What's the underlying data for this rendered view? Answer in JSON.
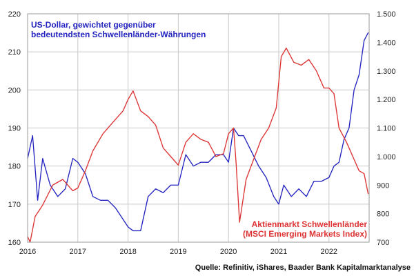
{
  "chart_data": {
    "type": "line",
    "title_left_line1": "US-Dollar, gewichtet gegenüber",
    "title_left_line2": "bedeutendsten Schwellenländer-Währungen",
    "title_right_line1": "Aktienmarkt Schwellenländer",
    "title_right_line2": "(MSCI Emerging Markets Index)",
    "source": "Quelle: Refinitiv, iShares, Baader Bank Kapitalmarktanalyse",
    "x_ticks": [
      "2016",
      "2017",
      "2018",
      "2019",
      "2020",
      "2021",
      "2022"
    ],
    "x_range": [
      2016.0,
      2022.8
    ],
    "y_left": {
      "ticks": [
        "160",
        "170",
        "180",
        "190",
        "200",
        "210",
        "220"
      ],
      "ylim": [
        160,
        220
      ]
    },
    "y_right": {
      "ticks": [
        "700",
        "800",
        "900",
        "1.000",
        "1.100",
        "1.200",
        "1.300",
        "1.400",
        "1.500"
      ],
      "ylim": [
        700,
        1500
      ]
    },
    "grid": true,
    "colors": {
      "usd": "#2424c0",
      "msci": "#dd3333",
      "grid": "#c8c8c8"
    },
    "series": [
      {
        "axis": "left",
        "x": [
          2016.0,
          2016.1,
          2016.2,
          2016.3,
          2016.45,
          2016.6,
          2016.75,
          2016.9,
          2017.0,
          2017.15,
          2017.3,
          2017.45,
          2017.6,
          2017.75,
          2017.9,
          2018.0,
          2018.1,
          2018.25,
          2018.4,
          2018.55,
          2018.7,
          2018.85,
          2019.0,
          2019.15,
          2019.3,
          2019.45,
          2019.6,
          2019.75,
          2019.9,
          2020.0,
          2020.1,
          2020.2,
          2020.3,
          2020.45,
          2020.6,
          2020.75,
          2020.9,
          2021.0,
          2021.1,
          2021.25,
          2021.4,
          2021.55,
          2021.7,
          2021.85,
          2022.0,
          2022.1,
          2022.2,
          2022.3,
          2022.4,
          2022.5,
          2022.6,
          2022.7,
          2022.78
        ],
        "y": [
          182,
          188,
          171,
          182,
          175,
          172,
          174,
          182,
          181,
          178,
          172,
          171,
          171,
          169,
          166,
          164,
          163,
          163,
          172,
          174,
          173,
          175,
          175,
          183,
          180,
          181,
          181,
          183,
          183,
          181,
          190,
          188,
          188,
          184,
          180,
          177,
          172,
          170,
          175,
          172,
          174,
          172,
          176,
          176,
          177,
          180,
          181,
          187,
          190,
          200,
          204,
          213,
          215
        ]
      },
      {
        "axis": "right",
        "x": [
          2016.0,
          2016.05,
          2016.15,
          2016.3,
          2016.5,
          2016.7,
          2016.9,
          2017.0,
          2017.15,
          2017.3,
          2017.5,
          2017.7,
          2017.9,
          2018.0,
          2018.1,
          2018.25,
          2018.4,
          2018.55,
          2018.7,
          2018.85,
          2019.0,
          2019.15,
          2019.3,
          2019.45,
          2019.6,
          2019.75,
          2019.9,
          2020.0,
          2020.1,
          2020.15,
          2020.22,
          2020.35,
          2020.5,
          2020.65,
          2020.8,
          2020.95,
          2021.05,
          2021.15,
          2021.3,
          2021.45,
          2021.6,
          2021.75,
          2021.9,
          2022.0,
          2022.1,
          2022.2,
          2022.35,
          2022.5,
          2022.6,
          2022.7,
          2022.78
        ],
        "y": [
          720,
          700,
          790,
          830,
          900,
          920,
          880,
          890,
          950,
          1020,
          1080,
          1120,
          1160,
          1200,
          1230,
          1160,
          1140,
          1110,
          1030,
          1000,
          970,
          1050,
          1080,
          1060,
          1050,
          1000,
          1010,
          1080,
          1100,
          980,
          770,
          920,
          990,
          1060,
          1100,
          1170,
          1350,
          1380,
          1330,
          1320,
          1340,
          1300,
          1240,
          1240,
          1220,
          1100,
          1050,
          990,
          950,
          940,
          870
        ]
      }
    ]
  }
}
